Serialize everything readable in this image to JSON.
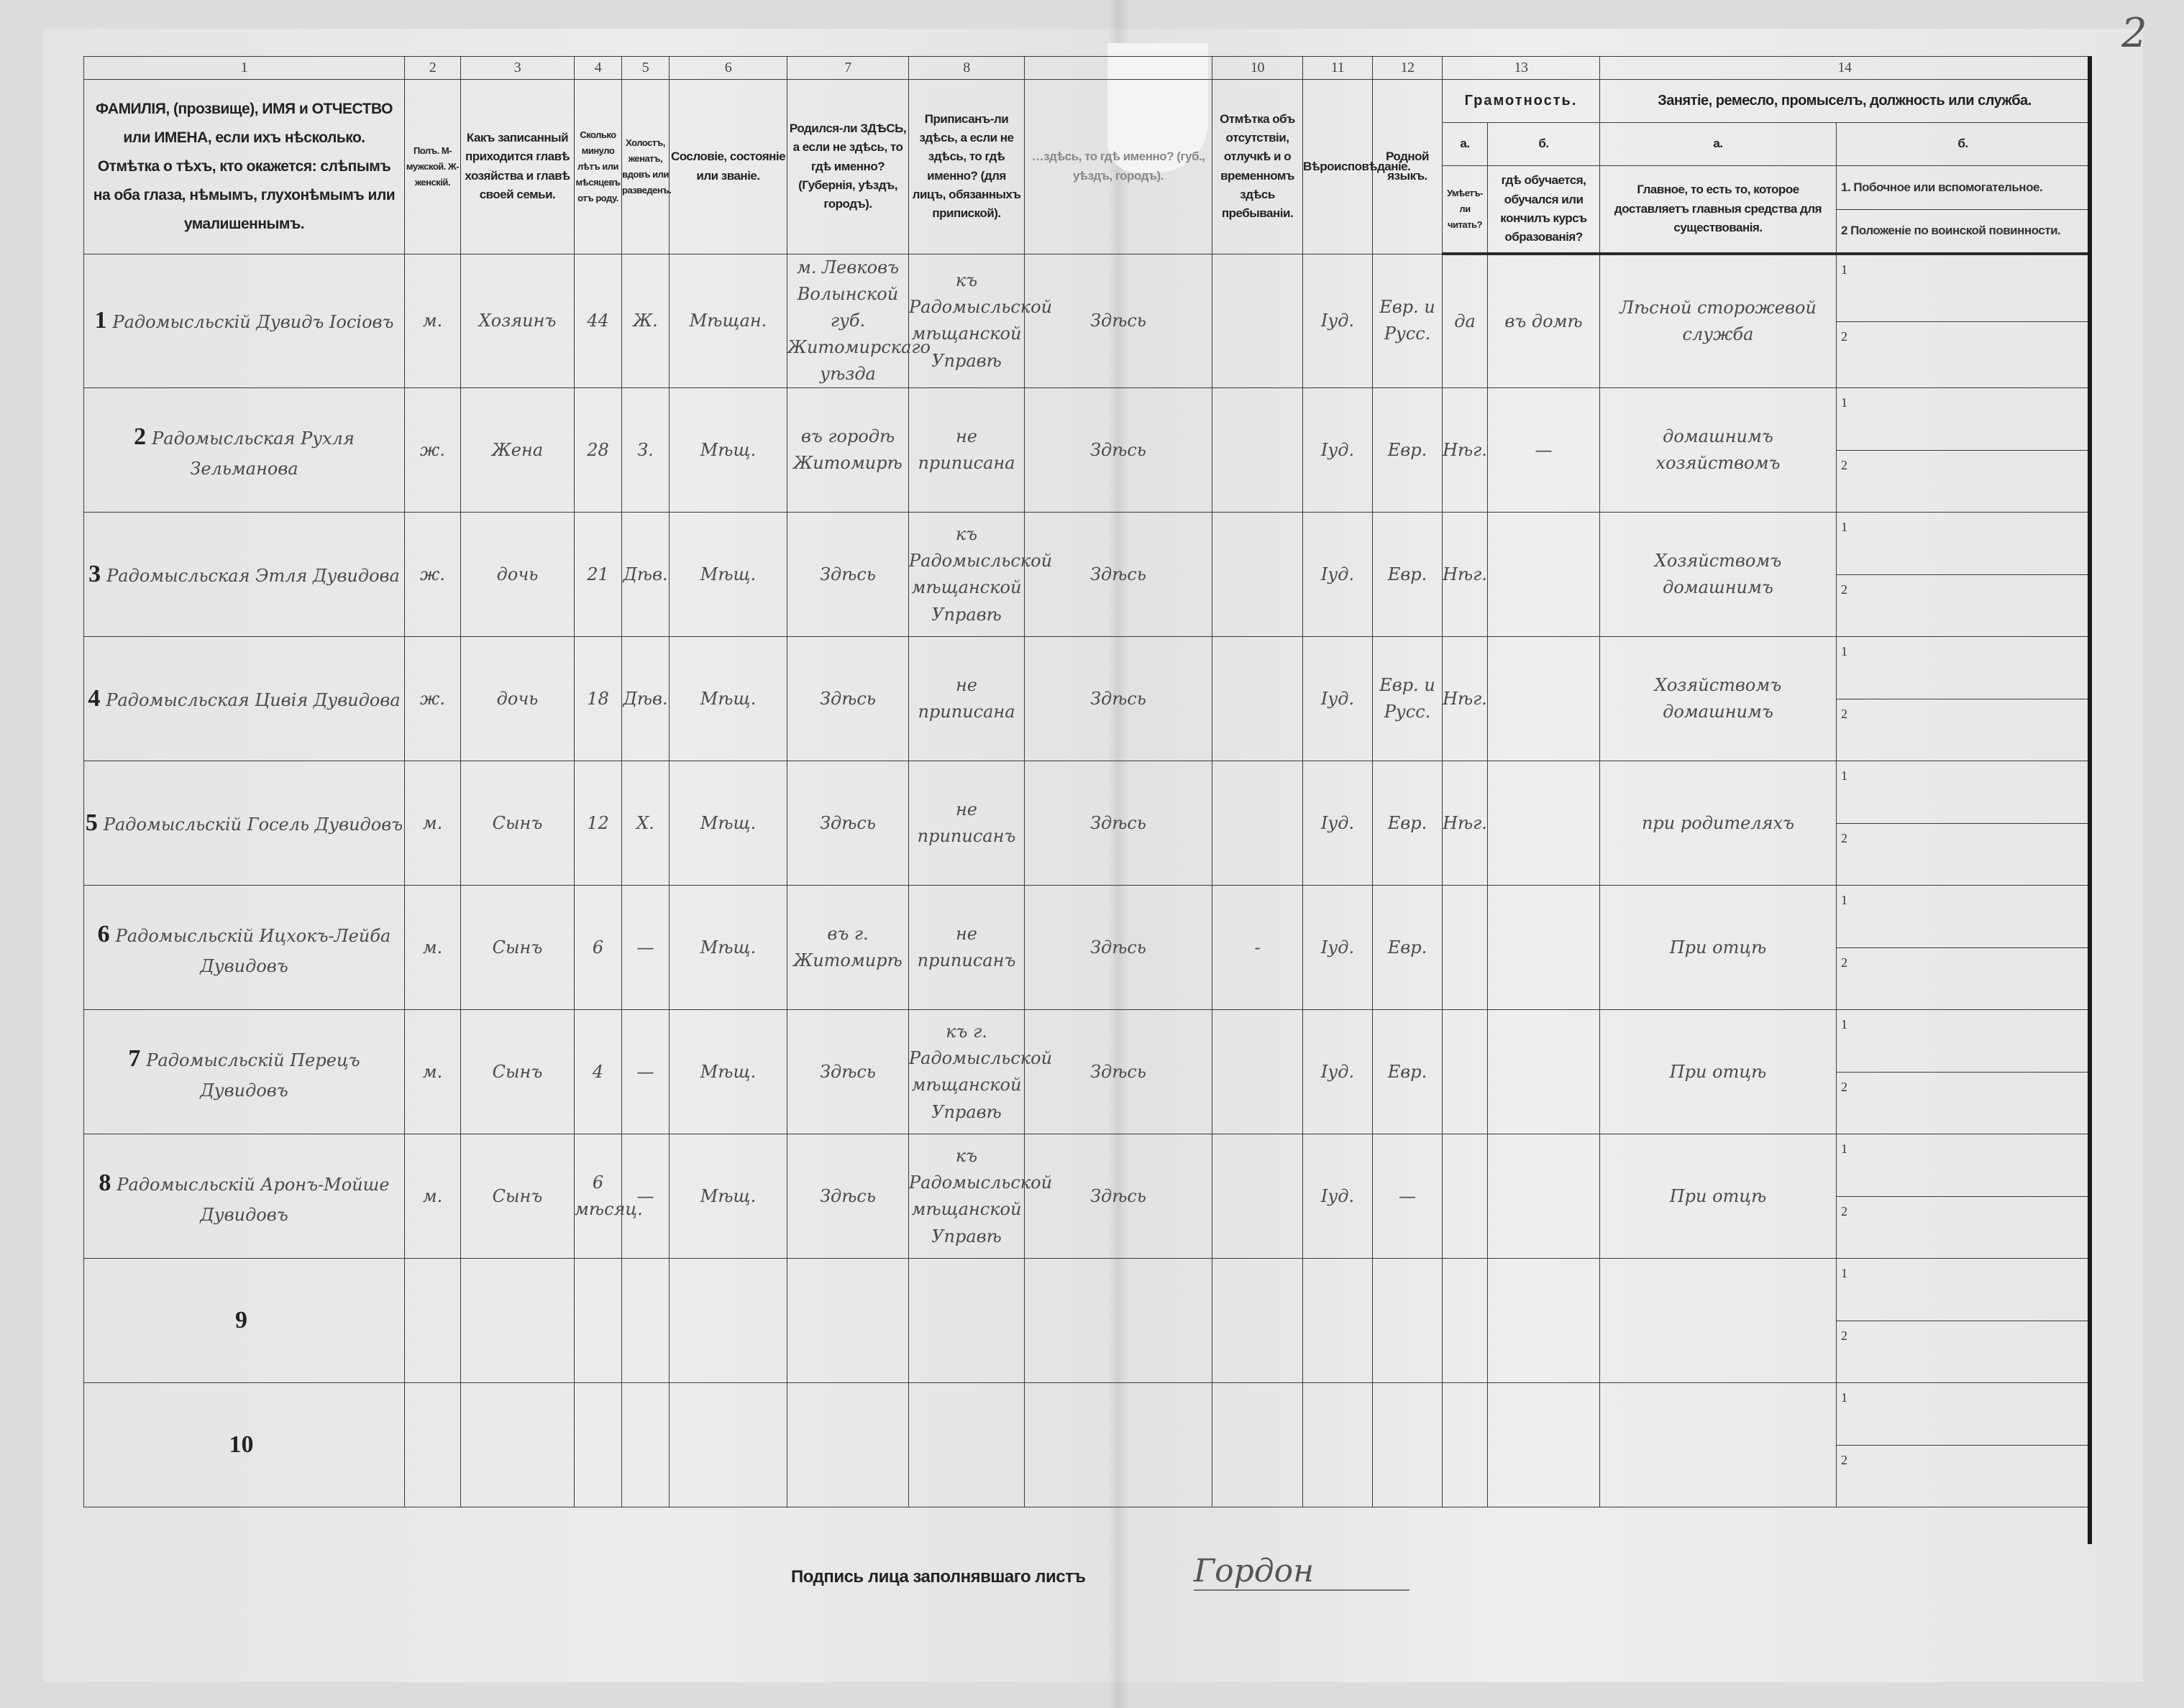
{
  "page_number": "2",
  "column_numbers": [
    "1",
    "2",
    "3",
    "4",
    "5",
    "6",
    "7",
    "8",
    "",
    "10",
    "11",
    "12",
    "13",
    "14"
  ],
  "headers": {
    "c1": "ФАМИЛІЯ, (прозвище), ИМЯ и ОТЧЕСТВО или ИМЕНА, если ихъ нѣсколько. Отмѣтка о тѣхъ, кто окажется: слѣпымъ на оба глаза, нѣмымъ, глухонѣмымъ или умалишеннымъ.",
    "c2": "Полъ. М-мужской. Ж-женскій.",
    "c3": "Какъ записанный приходится главѣ хозяйства и главѣ своей семьи.",
    "c4": "Сколько минуло лѣтъ или мѣсяцевъ отъ роду.",
    "c5": "Холостъ, женатъ, вдовъ или разведенъ.",
    "c6": "Сословіе, состояніе или званіе.",
    "c7": "Родился-ли ЗДѢСЬ, а если не здѣсь, то гдѣ именно? (Губернія, уѣздъ, городъ).",
    "c8": "Приписанъ-ли здѣсь, а если не здѣсь, то гдѣ именно? (для лицъ, обязанныхъ припиской).",
    "c9": "…здѣсь, то гдѣ именно? (губ., уѣздъ, городъ).",
    "c10": "Отмѣтка объ отсутствіи, отлучкѣ и о временномъ здѣсь пребываніи.",
    "c11": "Вѣроисповѣданіе.",
    "c12": "Родной языкъ.",
    "c13": "Грамотность.",
    "c13a_letter": "а.",
    "c13a": "Умѣетъ-ли читать?",
    "c13b_letter": "б.",
    "c13b": "гдѣ обучается, обучался или кончилъ курсъ образованія?",
    "c14": "Занятіе, ремесло, промыселъ, должность или служба.",
    "c14a_letter": "а.",
    "c14a": "Главное, то есть то, которое доставляетъ главныя средства для существованія.",
    "c14b_letter": "б.",
    "c14b_1": "1. Побочное или вспомогательное.",
    "c14b_2": "2 Положеніе по воинской повинности."
  },
  "sub_marks": [
    "1",
    "2"
  ],
  "rows": [
    {
      "n": "1",
      "name": "Радомысльскій Дувидъ Іосіовъ",
      "sex": "м.",
      "relation": "Хозяинъ",
      "age": "44",
      "marital": "Ж.",
      "estate": "Мѣщан.",
      "born": "м. Левковъ Волынской губ. Житомирскаго уѣзда",
      "registered": "къ Радомысльской мѣщанской Управѣ",
      "residence": "Здѣсь",
      "absence": "",
      "religion": "Іуд.",
      "language": "Евр. и Русс.",
      "reads": "да",
      "educated": "въ домѣ",
      "occupation": "Лѣсной сторожевой служба",
      "aux": "",
      "military": ""
    },
    {
      "n": "2",
      "name": "Радомысльская Рухля Зельманова",
      "sex": "ж.",
      "relation": "Жена",
      "age": "28",
      "marital": "З.",
      "estate": "Мѣщ.",
      "born": "въ городѣ Житомирѣ",
      "registered": "не приписана",
      "residence": "Здѣсь",
      "absence": "",
      "religion": "Іуд.",
      "language": "Евр.",
      "reads": "Нѣг.",
      "educated": "—",
      "occupation": "домашнимъ хозяйствомъ",
      "aux": "",
      "military": ""
    },
    {
      "n": "3",
      "name": "Радомысльская Этля Дувидова",
      "sex": "ж.",
      "relation": "дочь",
      "age": "21",
      "marital": "Дѣв.",
      "estate": "Мѣщ.",
      "born": "Здѣсь",
      "registered": "къ Радомысльской мѣщанской Управѣ",
      "residence": "Здѣсь",
      "absence": "",
      "religion": "Іуд.",
      "language": "Евр.",
      "reads": "Нѣг.",
      "educated": "",
      "occupation": "Хозяйствомъ домашнимъ",
      "aux": "",
      "military": ""
    },
    {
      "n": "4",
      "name": "Радомысльская Цивія Дувидова",
      "sex": "ж.",
      "relation": "дочь",
      "age": "18",
      "marital": "Дѣв.",
      "estate": "Мѣщ.",
      "born": "Здѣсь",
      "registered": "не приписана",
      "residence": "Здѣсь",
      "absence": "",
      "religion": "Іуд.",
      "language": "Евр. и Русс.",
      "reads": "Нѣг.",
      "educated": "",
      "occupation": "Хозяйствомъ домашнимъ",
      "aux": "",
      "military": ""
    },
    {
      "n": "5",
      "name": "Радомысльскій Госель Дувидовъ",
      "sex": "м.",
      "relation": "Сынъ",
      "age": "12",
      "marital": "Х.",
      "estate": "Мѣщ.",
      "born": "Здѣсь",
      "registered": "не приписанъ",
      "residence": "Здѣсь",
      "absence": "",
      "religion": "Іуд.",
      "language": "Евр.",
      "reads": "Нѣг.",
      "educated": "",
      "occupation": "при родителяхъ",
      "aux": "",
      "military": ""
    },
    {
      "n": "6",
      "name": "Радомысльскій Ицхокъ-Лейба Дувидовъ",
      "sex": "м.",
      "relation": "Сынъ",
      "age": "6",
      "marital": "—",
      "estate": "Мѣщ.",
      "born": "въ г. Житомирѣ",
      "registered": "не приписанъ",
      "residence": "Здѣсь",
      "absence": "-",
      "religion": "Іуд.",
      "language": "Евр.",
      "reads": "",
      "educated": "",
      "occupation": "При отцѣ",
      "aux": "",
      "military": ""
    },
    {
      "n": "7",
      "name": "Радомысльскій Перецъ Дувидовъ",
      "sex": "м.",
      "relation": "Сынъ",
      "age": "4",
      "marital": "—",
      "estate": "Мѣщ.",
      "born": "Здѣсь",
      "registered": "къ г. Радомысльской мѣщанской Управѣ",
      "residence": "Здѣсь",
      "absence": "",
      "religion": "Іуд.",
      "language": "Евр.",
      "reads": "",
      "educated": "",
      "occupation": "При отцѣ",
      "aux": "",
      "military": ""
    },
    {
      "n": "8",
      "name": "Радомысльскій Аронъ-Мойше Дувидовъ",
      "sex": "м.",
      "relation": "Сынъ",
      "age": "6 мѣсяц.",
      "marital": "—",
      "estate": "Мѣщ.",
      "born": "Здѣсь",
      "registered": "къ Радомысльской мѣщанской Управѣ",
      "residence": "Здѣсь",
      "absence": "",
      "religion": "Іуд.",
      "language": "—",
      "reads": "",
      "educated": "",
      "occupation": "При отцѣ",
      "aux": "",
      "military": ""
    },
    {
      "n": "9",
      "name": "",
      "sex": "",
      "relation": "",
      "age": "",
      "marital": "",
      "estate": "",
      "born": "",
      "registered": "",
      "residence": "",
      "absence": "",
      "religion": "",
      "language": "",
      "reads": "",
      "educated": "",
      "occupation": "",
      "aux": "",
      "military": ""
    },
    {
      "n": "10",
      "name": "",
      "sex": "",
      "relation": "",
      "age": "",
      "marital": "",
      "estate": "",
      "born": "",
      "registered": "",
      "residence": "",
      "absence": "",
      "religion": "",
      "language": "",
      "reads": "",
      "educated": "",
      "occupation": "",
      "aux": "",
      "military": ""
    }
  ],
  "footer": {
    "signature_label": "Подпись лица заполнявшаго листъ",
    "signature": "Гордон"
  }
}
